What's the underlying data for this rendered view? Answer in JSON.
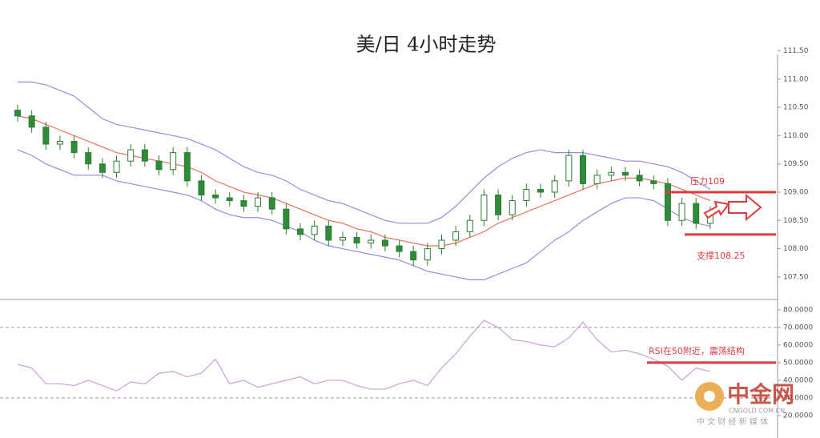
{
  "chart_data": [
    {
      "type": "candlestick",
      "title": "美/日 4小时走势",
      "open": [
        110.45,
        110.35,
        110.15,
        109.85,
        109.9,
        109.7,
        109.5,
        109.35,
        109.55,
        109.75,
        109.55,
        109.4,
        109.7,
        109.2,
        108.95,
        108.9,
        108.85,
        108.75,
        108.9,
        108.7,
        108.35,
        108.25,
        108.4,
        108.15,
        108.2,
        108.1,
        108.15,
        108.05,
        107.95,
        107.8,
        108.0,
        108.15,
        108.3,
        108.5,
        108.95,
        108.6,
        108.85,
        109.05,
        109.0,
        109.2,
        109.65,
        109.15,
        109.3,
        109.35,
        109.3,
        109.2,
        109.15,
        108.5,
        108.8,
        108.45
      ],
      "high": [
        110.55,
        110.45,
        110.25,
        110.0,
        110.0,
        109.8,
        109.6,
        109.65,
        109.85,
        109.85,
        109.65,
        109.8,
        109.8,
        109.3,
        109.05,
        109.0,
        108.95,
        109.0,
        109.0,
        108.8,
        108.45,
        108.5,
        108.5,
        108.3,
        108.3,
        108.25,
        108.25,
        108.15,
        108.05,
        108.1,
        108.25,
        108.4,
        108.6,
        109.05,
        109.05,
        108.95,
        109.15,
        109.15,
        109.3,
        109.75,
        109.75,
        109.4,
        109.45,
        109.45,
        109.4,
        109.3,
        109.25,
        108.9,
        108.9,
        108.75
      ],
      "low": [
        110.25,
        110.05,
        109.75,
        109.75,
        109.6,
        109.4,
        109.25,
        109.25,
        109.45,
        109.45,
        109.3,
        109.3,
        109.1,
        108.85,
        108.8,
        108.75,
        108.65,
        108.65,
        108.6,
        108.25,
        108.15,
        108.15,
        108.05,
        108.05,
        108.0,
        108.0,
        107.95,
        107.85,
        107.7,
        107.7,
        107.9,
        108.05,
        108.2,
        108.4,
        108.5,
        108.5,
        108.75,
        108.9,
        108.9,
        109.1,
        109.05,
        109.05,
        109.2,
        109.2,
        109.1,
        109.05,
        108.4,
        108.4,
        108.35,
        108.35
      ],
      "close": [
        110.35,
        110.15,
        109.85,
        109.9,
        109.7,
        109.5,
        109.35,
        109.55,
        109.75,
        109.55,
        109.4,
        109.7,
        109.2,
        108.95,
        108.9,
        108.85,
        108.75,
        108.9,
        108.7,
        108.35,
        108.25,
        108.4,
        108.15,
        108.2,
        108.1,
        108.15,
        108.05,
        107.95,
        107.8,
        108.0,
        108.15,
        108.3,
        108.5,
        108.95,
        108.6,
        108.85,
        109.05,
        109.0,
        109.2,
        109.65,
        109.15,
        109.3,
        109.35,
        109.3,
        109.2,
        109.15,
        108.5,
        108.8,
        108.45,
        108.65
      ],
      "up_color": "#ffffff",
      "down_color": "#2e8b3a",
      "wick_color": "#2e7d32",
      "series": [
        {
          "color": "#e8735a",
          "values": [
            110.35,
            110.3,
            110.2,
            110.1,
            110.0,
            109.9,
            109.8,
            109.7,
            109.65,
            109.6,
            109.55,
            109.5,
            109.45,
            109.35,
            109.2,
            109.1,
            109.0,
            108.95,
            108.9,
            108.8,
            108.7,
            108.6,
            108.5,
            108.45,
            108.35,
            108.3,
            108.2,
            108.15,
            108.1,
            108.05,
            108.05,
            108.1,
            108.2,
            108.3,
            108.45,
            108.55,
            108.65,
            108.75,
            108.85,
            108.95,
            109.05,
            109.15,
            109.2,
            109.25,
            109.25,
            109.2,
            109.15,
            109.05,
            108.95,
            108.85
          ]
        },
        {
          "color": "#8f8fe0",
          "values": [
            110.95,
            110.95,
            110.9,
            110.8,
            110.7,
            110.5,
            110.3,
            110.2,
            110.15,
            110.1,
            110.05,
            110.0,
            109.95,
            109.85,
            109.75,
            109.6,
            109.45,
            109.35,
            109.3,
            109.2,
            109.05,
            108.95,
            108.85,
            108.8,
            108.7,
            108.6,
            108.5,
            108.45,
            108.45,
            108.45,
            108.55,
            108.75,
            109.0,
            109.25,
            109.45,
            109.6,
            109.7,
            109.75,
            109.7,
            109.7,
            109.7,
            109.65,
            109.6,
            109.55,
            109.55,
            109.5,
            109.45,
            109.35,
            109.2,
            109.05
          ]
        },
        {
          "color": "#8f8fe0",
          "values": [
            109.75,
            109.65,
            109.5,
            109.4,
            109.3,
            109.3,
            109.3,
            109.2,
            109.15,
            109.1,
            109.05,
            109.0,
            108.95,
            108.85,
            108.7,
            108.6,
            108.55,
            108.55,
            108.5,
            108.4,
            108.3,
            108.15,
            108.05,
            108.0,
            107.95,
            107.9,
            107.85,
            107.8,
            107.7,
            107.6,
            107.55,
            107.5,
            107.45,
            107.45,
            107.55,
            107.65,
            107.75,
            107.95,
            108.15,
            108.3,
            108.5,
            108.65,
            108.8,
            108.9,
            108.9,
            108.85,
            108.7,
            108.55,
            108.45,
            108.4
          ]
        }
      ],
      "ylim": [
        107.2,
        111.65
      ],
      "yticks": [
        {
          "value": 107.5,
          "label": "107.50"
        },
        {
          "value": 108,
          "label": "108.00"
        },
        {
          "value": 108.5,
          "label": "108.50"
        },
        {
          "value": 109,
          "label": "109.00"
        },
        {
          "value": 109.5,
          "label": "109.50"
        },
        {
          "value": 110,
          "label": "110.00"
        },
        {
          "value": 110.5,
          "label": "110.50"
        },
        {
          "value": 111,
          "label": "111.00"
        },
        {
          "value": 111.5,
          "label": "111.50"
        }
      ],
      "annotations": [
        {
          "label": "压力109",
          "value": 109,
          "color": "#e0393e"
        },
        {
          "label": "支撑108.25",
          "value": 108.25,
          "color": "#e0393e"
        }
      ]
    },
    {
      "type": "line",
      "series": [
        {
          "color": "#c9a0d8",
          "values": [
            49,
            47,
            38,
            38,
            37,
            40,
            37,
            34,
            39,
            38,
            44,
            45,
            42,
            44,
            52,
            38,
            40,
            36,
            38,
            40,
            42,
            38,
            40,
            40,
            37,
            35,
            35,
            38,
            40,
            37,
            47,
            55,
            65,
            74,
            70,
            63,
            62,
            60,
            59,
            64,
            73,
            63,
            56,
            57,
            55,
            52,
            48,
            40,
            47,
            45
          ]
        }
      ],
      "ylim": [
        15,
        84
      ],
      "yticks": [
        {
          "value": 20,
          "label": "20.0000"
        },
        {
          "value": 30,
          "label": "30.0000"
        },
        {
          "value": 40,
          "label": "40.0000"
        },
        {
          "value": 50,
          "label": "50.0000"
        },
        {
          "value": 60,
          "label": "60.0000"
        },
        {
          "value": 70,
          "label": "70.0000"
        },
        {
          "value": 80,
          "label": "80.0000"
        }
      ],
      "dashed_levels": [
        70,
        30
      ],
      "annotations": [
        {
          "label": "RSI在50附近，震荡结构",
          "value": 50,
          "color": "#e0393e"
        }
      ]
    }
  ],
  "watermark": {
    "logo": "中金网",
    "url": "CNGOLD.COM.CN",
    "slogan": "中 文 财 经 新 媒 体"
  }
}
